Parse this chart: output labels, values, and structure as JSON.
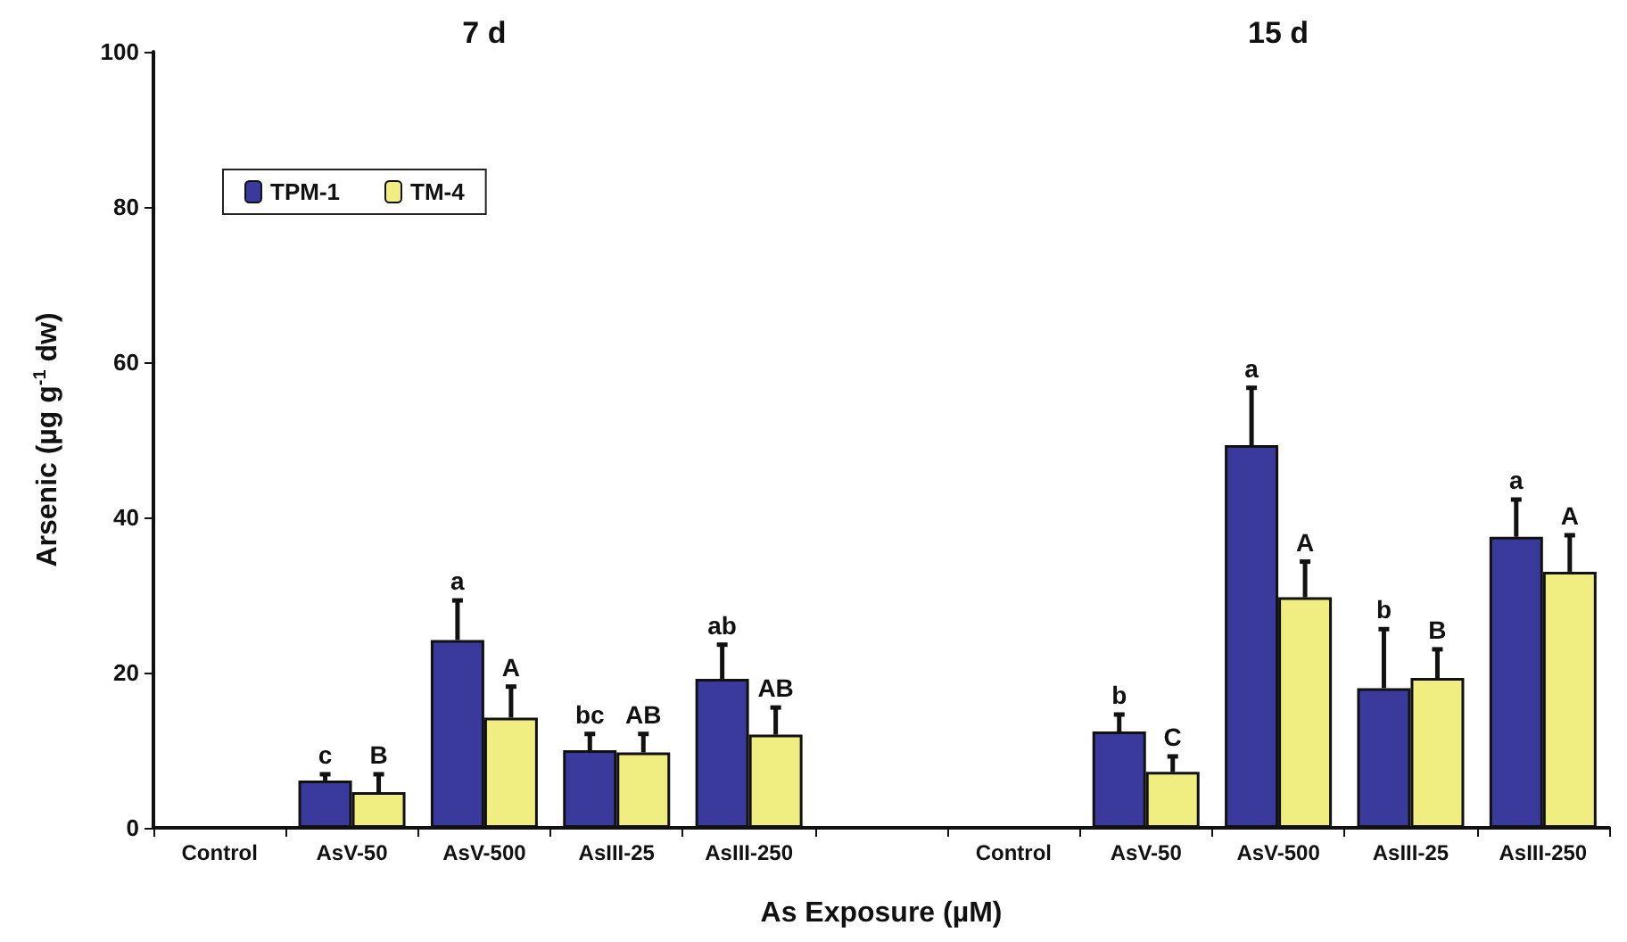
{
  "chart_data": {
    "type": "bar",
    "xlabel": "As Exposure (µM)",
    "ylabel": "Arsenic (µg g$^{-1}$ dw)",
    "annotations": [
      "7 d",
      "15 d"
    ],
    "categories": [
      "Control",
      "AsV-50",
      "AsV-500",
      "AsIII-25",
      "AsIII-250",
      null,
      "Control",
      "AsV-50",
      "AsV-500",
      "AsIII-25",
      "AsIII-250"
    ],
    "series": [
      {
        "name": "TPM-1",
        "color": "#3a3a9c",
        "values": [
          null,
          6.1,
          24.2,
          10.0,
          19.2,
          null,
          null,
          12.4,
          49.3,
          18.0,
          37.5
        ],
        "errors": [
          null,
          [
            6.1,
            6.9
          ],
          [
            24.2,
            29.3
          ],
          [
            10.0,
            12.1
          ],
          [
            19.2,
            23.6
          ],
          null,
          null,
          [
            12.4,
            14.6
          ],
          [
            49.3,
            56.7
          ],
          [
            18.0,
            25.6
          ],
          [
            37.5,
            42.3
          ]
        ],
        "value_labels": [
          null,
          "c",
          "a",
          "bc",
          "ab",
          null,
          null,
          "b",
          "a",
          "b",
          "a"
        ]
      },
      {
        "name": "TM-4",
        "color": "#f0ee80",
        "values": [
          null,
          4.6,
          14.2,
          9.7,
          12.0,
          null,
          null,
          7.2,
          29.7,
          19.3,
          33.0
        ],
        "errors": [
          null,
          [
            4.6,
            6.9
          ],
          [
            14.2,
            18.2
          ],
          [
            9.7,
            12.1
          ],
          [
            12.0,
            15.5
          ],
          null,
          null,
          [
            7.2,
            9.2
          ],
          [
            29.7,
            34.3
          ],
          [
            19.3,
            23.0
          ],
          [
            33.0,
            37.7
          ]
        ],
        "value_labels": [
          null,
          "B",
          "A",
          "AB",
          "AB",
          null,
          null,
          "C",
          "A",
          "B",
          "A"
        ]
      }
    ],
    "ylim": [
      0,
      100
    ],
    "yticks": [
      0,
      20,
      40,
      60,
      80,
      100
    ],
    "grid": false,
    "legend": "top left"
  }
}
